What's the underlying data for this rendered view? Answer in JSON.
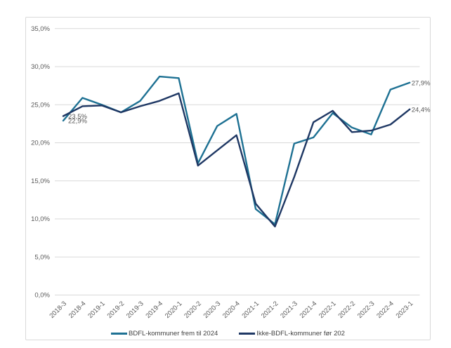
{
  "chart_data": {
    "type": "line",
    "title": "",
    "xlabel": "",
    "ylabel": "",
    "grid": true,
    "legend_position": "bottom",
    "categories": [
      "2018-3",
      "2018-4",
      "2019-1",
      "2019-2",
      "2019-3",
      "2019-4",
      "2020-1",
      "2020-2",
      "2020-3",
      "2020-4",
      "2021-1",
      "2021-2",
      "2021-3",
      "2021-4",
      "2022-1",
      "2022-2",
      "2022-3",
      "2022-4",
      "2023-1"
    ],
    "series": [
      {
        "name": "BDFL-kommuner frem til 2024",
        "color": "#1E7193",
        "values": [
          22.9,
          25.9,
          25.0,
          24.0,
          25.5,
          28.7,
          28.5,
          17.3,
          22.2,
          23.8,
          11.3,
          9.3,
          19.9,
          20.7,
          23.9,
          22.0,
          21.1,
          27.0,
          27.9
        ]
      },
      {
        "name": "Ikke-BDFL-kommuner før 202",
        "color": "#1F3864",
        "values": [
          23.5,
          24.8,
          24.9,
          24.0,
          24.8,
          25.5,
          26.5,
          17.0,
          19.0,
          21.0,
          12.0,
          9.0,
          15.5,
          22.7,
          24.2,
          21.4,
          21.6,
          22.4,
          24.4
        ]
      }
    ],
    "y_axis": {
      "min": 0,
      "max": 35,
      "ticks": [
        {
          "v": 0,
          "label": "0,0%"
        },
        {
          "v": 5,
          "label": "5,0%"
        },
        {
          "v": 10,
          "label": "10,0%"
        },
        {
          "v": 15,
          "label": "15,0%"
        },
        {
          "v": 20,
          "label": "20,0%"
        },
        {
          "v": 25,
          "label": "25,0%"
        },
        {
          "v": 30,
          "label": "30,0%"
        },
        {
          "v": 35,
          "label": "35,0%"
        }
      ]
    },
    "annotations": [
      {
        "text": "23,5%",
        "series": 1,
        "point": 0
      },
      {
        "text": "22,9%",
        "series": 0,
        "point": 0
      },
      {
        "text": "27,9%",
        "series": 0,
        "point": 18
      },
      {
        "text": "24,4%",
        "series": 1,
        "point": 18
      }
    ]
  },
  "colors": {
    "grid": "#D9D9D9",
    "frame_border": "#D9D9D9",
    "axis_text": "#595959",
    "annotation_text": "#595959",
    "legend_text": "#404040",
    "background": "#FFFFFF"
  }
}
